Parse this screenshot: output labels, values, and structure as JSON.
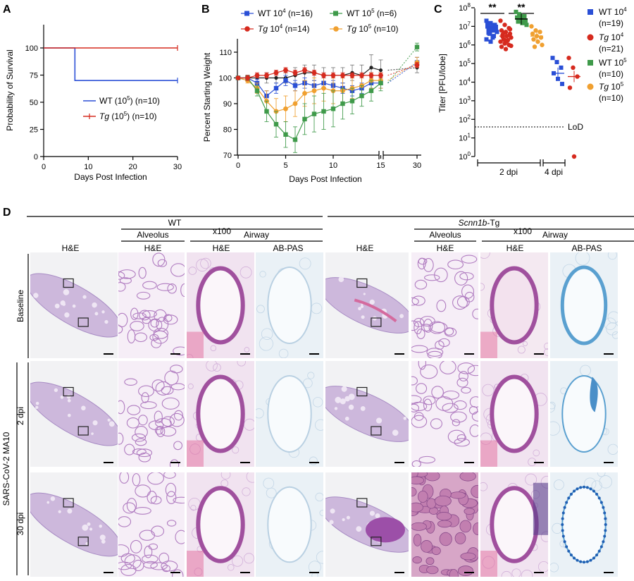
{
  "panels": {
    "a": {
      "letter": "A",
      "ylabel": "Probability of Survival",
      "xlabel": "Days Post Infection",
      "yticks": [
        "0",
        "25",
        "50",
        "75",
        "100"
      ],
      "xticks": [
        "0",
        "10",
        "20",
        "30"
      ],
      "legend": [
        {
          "pre": "WT (10",
          "sup": "5",
          "post": ") (n=10)",
          "color": "#2a4fd6"
        },
        {
          "pre": "",
          "it": "Tg",
          "mid": " (10",
          "sup": "5",
          "post": ") (n=10)",
          "color": "#d62a1e"
        }
      ]
    },
    "b": {
      "letter": "B",
      "ylabel": "Percent Starting Weight",
      "xlabel": "Days Post Infection",
      "yticks": [
        "70",
        "80",
        "90",
        "100",
        "110"
      ],
      "xticks": [
        "0",
        "5",
        "10",
        "15",
        "30"
      ],
      "legend": [
        {
          "name": "WT 10",
          "sup": "4",
          "n": " (n=16)",
          "color": "#2a4fd6",
          "marker": "square"
        },
        {
          "name": "WT 10",
          "sup": "5",
          "n": " (n=6)",
          "color": "#3f9a4a",
          "marker": "square"
        },
        {
          "it": "Tg",
          "name": " 10",
          "sup": "4",
          "n": " (n=14)",
          "color": "#d62a1e",
          "marker": "circle"
        },
        {
          "it": "Tg",
          "name": " 10",
          "sup": "5",
          "n": " (n=10)",
          "color": "#f0a030",
          "marker": "circle"
        }
      ]
    },
    "c": {
      "letter": "C",
      "ylabel": "Titer [PFU/lobe]",
      "lod": "LoD",
      "stars": [
        "**",
        "**"
      ],
      "groups": [
        "2 dpi",
        "4 dpi"
      ],
      "legend": [
        {
          "name": "WT 10",
          "sup": "4",
          "n": "(n=19)",
          "color": "#2a4fd6",
          "marker": "square"
        },
        {
          "it": "Tg",
          "name": " 10",
          "sup": "4",
          "n": "(n=21)",
          "color": "#d62a1e",
          "marker": "circle"
        },
        {
          "name": "WT 10",
          "sup": "5",
          "n": "(n=10)",
          "color": "#3f9a4a",
          "marker": "square"
        },
        {
          "it": "Tg",
          "name": " 10",
          "sup": "5",
          "n": "(n=10)",
          "color": "#f0a030",
          "marker": "circle"
        }
      ]
    },
    "d": {
      "letter": "D",
      "wt": "WT",
      "tg_it": "Scnn1b",
      "tg_rest": "-Tg",
      "x100": "x100",
      "alveolus": "Alveolus",
      "airway": "Airway",
      "he": "H&E",
      "abpas": "AB-PAS",
      "baseline": "Baseline",
      "dpi2": "2 dpi",
      "dpi30": "30 dpi",
      "virus": "SARS-CoV-2 MA10"
    }
  },
  "chart_data": [
    {
      "type": "line",
      "title": "",
      "xlabel": "Days Post Infection",
      "ylabel": "Probability of Survival",
      "xlim": [
        0,
        30
      ],
      "ylim": [
        0,
        100
      ],
      "series": [
        {
          "name": "WT (10^5) (n=10)",
          "x": [
            0,
            7,
            7,
            30
          ],
          "y": [
            100,
            100,
            70,
            70
          ],
          "color": "#2a4fd6"
        },
        {
          "name": "Tg (10^5) (n=10)",
          "x": [
            0,
            30
          ],
          "y": [
            100,
            100
          ],
          "color": "#d62a1e"
        }
      ]
    },
    {
      "type": "line",
      "title": "",
      "xlabel": "Days Post Infection",
      "ylabel": "Percent Starting Weight",
      "ylim": [
        70,
        115
      ],
      "x": [
        0,
        1,
        2,
        3,
        4,
        5,
        6,
        7,
        8,
        9,
        10,
        11,
        12,
        13,
        14,
        15,
        30
      ],
      "series": [
        {
          "name": "WT 10^4 (n=16)",
          "color": "#2a4fd6",
          "values": [
            100,
            100,
            98,
            93,
            96,
            99,
            97,
            98,
            97,
            98,
            97,
            96,
            95,
            96,
            98,
            98,
            106
          ],
          "err": [
            0.5,
            1,
            1.5,
            2,
            2,
            2,
            2,
            2,
            2,
            2,
            2,
            2,
            2,
            2,
            2,
            2,
            2
          ]
        },
        {
          "name": "WT 10^5 (n=6)",
          "color": "#3f9a4a",
          "values": [
            100,
            100,
            95,
            87,
            82,
            78,
            76,
            84,
            86,
            87,
            88,
            90,
            91,
            93,
            95,
            98,
            112
          ],
          "err": [
            0.5,
            1,
            2,
            4,
            5,
            5,
            5,
            6,
            7,
            7,
            7,
            6,
            5,
            4,
            4,
            3,
            1.5
          ]
        },
        {
          "name": "Tg 10^4 (n=14)",
          "color": "#d62a1e",
          "values": [
            100,
            100,
            101,
            101,
            102,
            103,
            102,
            103,
            102,
            101,
            101,
            101,
            101,
            101,
            101,
            101,
            105
          ],
          "err": [
            0.5,
            1,
            1,
            1,
            1,
            1,
            1,
            1,
            1,
            1,
            1,
            1,
            1,
            1,
            1,
            1,
            1
          ]
        },
        {
          "name": "Tg 10^5 (n=10)",
          "color": "#f0a030",
          "values": [
            100,
            99,
            96,
            91,
            87,
            88,
            90,
            94,
            95,
            96,
            95,
            95,
            96,
            97,
            99,
            99,
            106
          ],
          "err": [
            0.5,
            1,
            2,
            4,
            5,
            5,
            5,
            5,
            5,
            5,
            5,
            5,
            4,
            4,
            3,
            3,
            2
          ]
        },
        {
          "name": "",
          "color": "#222222",
          "values": [
            100,
            100,
            100,
            100,
            100,
            100,
            101,
            102,
            102,
            101,
            101,
            101,
            102,
            101,
            104,
            103,
            104
          ],
          "err": [
            0.5,
            1,
            1.5,
            2,
            2,
            2,
            3,
            3,
            3,
            3,
            3,
            3,
            3,
            4,
            5,
            4,
            2
          ]
        }
      ]
    },
    {
      "type": "scatter",
      "title": "",
      "ylabel": "Titer [PFU/lobe]",
      "yscale": "log",
      "ylim": [
        1,
        100000000
      ],
      "categories": [
        "2 dpi",
        "4 dpi"
      ],
      "lod": 50,
      "series": [
        {
          "name": "WT 10^4 (n=19)",
          "group": "2 dpi",
          "color": "#2a4fd6",
          "mean": 8000000,
          "points": [
            20000000,
            15000000,
            12000000,
            10000000,
            9000000,
            8000000,
            7000000,
            6000000,
            5000000,
            4000000,
            3000000,
            2000000,
            1500000,
            11000000,
            13000000,
            6500000,
            9500000,
            4500000,
            2500000
          ]
        },
        {
          "name": "Tg 10^4 (n=21)",
          "group": "2 dpi",
          "color": "#d62a1e",
          "mean": 3000000,
          "points": [
            20000000,
            12000000,
            8000000,
            6000000,
            5000000,
            4000000,
            3500000,
            3000000,
            2500000,
            2000000,
            1800000,
            1500000,
            1200000,
            1000000,
            800000,
            600000,
            7000000,
            2800000,
            1600000,
            900000,
            4500000
          ]
        },
        {
          "name": "WT 10^5 (n=10)",
          "group": "2 dpi",
          "color": "#3f9a4a",
          "mean": 25000000,
          "points": [
            60000000,
            40000000,
            35000000,
            30000000,
            25000000,
            20000000,
            18000000,
            15000000,
            12000000,
            45000000
          ]
        },
        {
          "name": "Tg 10^5 (n=10)",
          "group": "2 dpi",
          "color": "#f0a030",
          "mean": 3000000,
          "points": [
            10000000,
            6000000,
            5000000,
            4000000,
            3000000,
            2500000,
            2000000,
            1500000,
            1000000,
            800000
          ]
        },
        {
          "name": "WT 10^4",
          "group": "4 dpi",
          "color": "#2a4fd6",
          "mean": 30000,
          "points": [
            200000,
            120000,
            60000,
            30000,
            15000,
            8000
          ]
        },
        {
          "name": "Tg 10^4",
          "group": "4 dpi",
          "color": "#d62a1e",
          "mean": 20000,
          "points": [
            200000,
            60000,
            20000,
            5000,
            1
          ]
        }
      ]
    }
  ]
}
